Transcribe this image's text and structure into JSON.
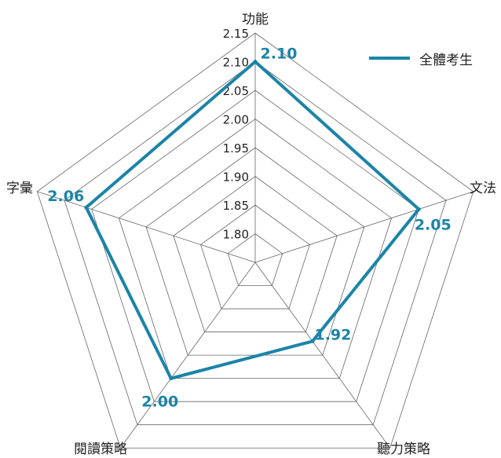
{
  "chart_data": {
    "type": "radar",
    "categories": [
      "功能",
      "文法",
      "聽力策略",
      "閱讀策略",
      "字彙"
    ],
    "series": [
      {
        "name": "全體考生",
        "values": [
          2.1,
          2.05,
          1.92,
          2.0,
          2.06
        ]
      }
    ],
    "value_labels": [
      "2.10",
      "2.05",
      "1.92",
      "2.00",
      "2.06"
    ],
    "radial_ticks": [
      "1.80",
      "1.85",
      "1.90",
      "1.95",
      "2.00",
      "2.05",
      "2.10",
      "2.15"
    ],
    "rlim": [
      1.75,
      2.15
    ],
    "grid": true,
    "legend_position": "top-right",
    "colors": {
      "series": "#1b84a8",
      "grid": "#666666",
      "text": "#222222"
    }
  }
}
